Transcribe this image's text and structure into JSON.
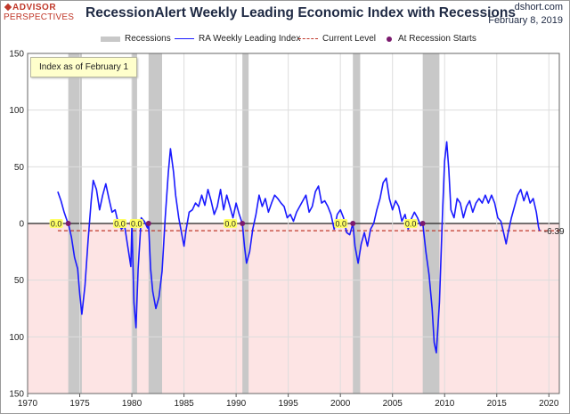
{
  "header": {
    "logo_top": "ADVISOR",
    "logo_bottom": "PERSPECTIVES",
    "title": "RecessionAlert Weekly Leading Economic Index with Recessions",
    "source": "dshort.com",
    "date": "February 8, 2019"
  },
  "note": "Index as of February 1",
  "colors": {
    "series": "#1a1aff",
    "recession": "#c8c8c8",
    "current": "#c0392b",
    "negative_band": "#fde4e4",
    "marker": "#7b1a6e",
    "zero_label_bg": "#ffff66"
  },
  "chart_data": {
    "type": "line",
    "title": "RecessionAlert Weekly Leading Economic Index with Recessions",
    "xlabel": "",
    "ylabel": "",
    "xlim": [
      1970,
      2021
    ],
    "ylim": [
      -150,
      150
    ],
    "x_ticks": [
      1970,
      1975,
      1980,
      1985,
      1990,
      1995,
      2000,
      2005,
      2010,
      2015,
      2020
    ],
    "y_ticks": [
      150,
      100,
      50,
      0,
      -50,
      -100,
      -150
    ],
    "y_tick_labels": [
      "150",
      "100",
      "50",
      "0",
      "50",
      "100",
      "150"
    ],
    "legend": [
      {
        "key": "recessions",
        "label": "Recessions"
      },
      {
        "key": "series",
        "label": "RA Weekly Leading Index"
      },
      {
        "key": "current",
        "label": "Current Level"
      },
      {
        "key": "starts",
        "label": "At Recession Starts"
      }
    ],
    "recessions": [
      [
        1973.9,
        1975.2
      ],
      [
        1980.0,
        1980.5
      ],
      [
        1981.6,
        1982.9
      ],
      [
        1990.6,
        1991.2
      ],
      [
        2001.2,
        2001.9
      ],
      [
        2007.9,
        2009.5
      ]
    ],
    "current_level": -6.39,
    "current_label": "-6.39",
    "recession_start_values": [
      {
        "x": 1973.9,
        "y": 0,
        "label": "0.0"
      },
      {
        "x": 1980.0,
        "y": 0,
        "label": "0.0"
      },
      {
        "x": 1981.6,
        "y": 0,
        "label": "0.0"
      },
      {
        "x": 1990.6,
        "y": 0,
        "label": "0.0"
      },
      {
        "x": 2001.2,
        "y": 0,
        "label": "0.0"
      },
      {
        "x": 2007.9,
        "y": 0,
        "label": "0.0"
      }
    ],
    "series": [
      {
        "name": "RA Weekly Leading Index",
        "points": [
          [
            1972.9,
            28
          ],
          [
            1973.2,
            20
          ],
          [
            1973.5,
            10
          ],
          [
            1973.8,
            2
          ],
          [
            1973.9,
            0
          ],
          [
            1974.2,
            -12
          ],
          [
            1974.5,
            -30
          ],
          [
            1974.8,
            -40
          ],
          [
            1975.0,
            -62
          ],
          [
            1975.2,
            -80
          ],
          [
            1975.5,
            -55
          ],
          [
            1975.8,
            -15
          ],
          [
            1976.1,
            20
          ],
          [
            1976.3,
            38
          ],
          [
            1976.6,
            30
          ],
          [
            1976.9,
            12
          ],
          [
            1977.2,
            25
          ],
          [
            1977.5,
            35
          ],
          [
            1977.8,
            22
          ],
          [
            1978.1,
            10
          ],
          [
            1978.4,
            12
          ],
          [
            1978.7,
            0
          ],
          [
            1979.0,
            -5
          ],
          [
            1979.3,
            -2
          ],
          [
            1979.6,
            -20
          ],
          [
            1979.9,
            -38
          ],
          [
            1980.0,
            0
          ],
          [
            1980.2,
            -70
          ],
          [
            1980.4,
            -92
          ],
          [
            1980.6,
            -40
          ],
          [
            1980.9,
            5
          ],
          [
            1981.2,
            2
          ],
          [
            1981.5,
            -4
          ],
          [
            1981.6,
            0
          ],
          [
            1981.8,
            -40
          ],
          [
            1982.0,
            -60
          ],
          [
            1982.3,
            -75
          ],
          [
            1982.6,
            -65
          ],
          [
            1982.9,
            -42
          ],
          [
            1983.2,
            5
          ],
          [
            1983.5,
            45
          ],
          [
            1983.7,
            66
          ],
          [
            1984.0,
            45
          ],
          [
            1984.2,
            25
          ],
          [
            1984.5,
            5
          ],
          [
            1984.8,
            -10
          ],
          [
            1985.0,
            -20
          ],
          [
            1985.2,
            -6
          ],
          [
            1985.5,
            10
          ],
          [
            1985.8,
            12
          ],
          [
            1986.1,
            18
          ],
          [
            1986.4,
            15
          ],
          [
            1986.7,
            25
          ],
          [
            1987.0,
            16
          ],
          [
            1987.3,
            30
          ],
          [
            1987.6,
            20
          ],
          [
            1987.9,
            8
          ],
          [
            1988.2,
            15
          ],
          [
            1988.5,
            30
          ],
          [
            1988.8,
            12
          ],
          [
            1989.1,
            25
          ],
          [
            1989.4,
            15
          ],
          [
            1989.7,
            5
          ],
          [
            1990.0,
            18
          ],
          [
            1990.3,
            8
          ],
          [
            1990.6,
            0
          ],
          [
            1990.8,
            -20
          ],
          [
            1991.0,
            -35
          ],
          [
            1991.3,
            -25
          ],
          [
            1991.6,
            -5
          ],
          [
            1991.9,
            8
          ],
          [
            1992.2,
            25
          ],
          [
            1992.5,
            15
          ],
          [
            1992.8,
            22
          ],
          [
            1993.1,
            10
          ],
          [
            1993.4,
            18
          ],
          [
            1993.7,
            25
          ],
          [
            1994.0,
            22
          ],
          [
            1994.3,
            18
          ],
          [
            1994.6,
            15
          ],
          [
            1994.9,
            5
          ],
          [
            1995.2,
            8
          ],
          [
            1995.5,
            2
          ],
          [
            1995.8,
            10
          ],
          [
            1996.1,
            15
          ],
          [
            1996.4,
            20
          ],
          [
            1996.7,
            25
          ],
          [
            1997.0,
            10
          ],
          [
            1997.3,
            15
          ],
          [
            1997.6,
            28
          ],
          [
            1997.9,
            33
          ],
          [
            1998.2,
            18
          ],
          [
            1998.5,
            20
          ],
          [
            1998.8,
            15
          ],
          [
            1999.1,
            8
          ],
          [
            1999.4,
            -5
          ],
          [
            1999.7,
            8
          ],
          [
            2000.0,
            12
          ],
          [
            2000.3,
            5
          ],
          [
            2000.6,
            -8
          ],
          [
            2000.9,
            -10
          ],
          [
            2001.2,
            0
          ],
          [
            2001.4,
            -20
          ],
          [
            2001.7,
            -35
          ],
          [
            2002.0,
            -18
          ],
          [
            2002.3,
            -8
          ],
          [
            2002.6,
            -20
          ],
          [
            2002.9,
            -5
          ],
          [
            2003.2,
            0
          ],
          [
            2003.5,
            12
          ],
          [
            2003.8,
            22
          ],
          [
            2004.1,
            36
          ],
          [
            2004.4,
            40
          ],
          [
            2004.7,
            22
          ],
          [
            2005.0,
            12
          ],
          [
            2005.3,
            20
          ],
          [
            2005.6,
            15
          ],
          [
            2005.9,
            2
          ],
          [
            2006.2,
            8
          ],
          [
            2006.5,
            -5
          ],
          [
            2006.8,
            4
          ],
          [
            2007.1,
            10
          ],
          [
            2007.4,
            5
          ],
          [
            2007.7,
            -2
          ],
          [
            2007.9,
            0
          ],
          [
            2008.2,
            -25
          ],
          [
            2008.5,
            -45
          ],
          [
            2008.8,
            -75
          ],
          [
            2009.0,
            -105
          ],
          [
            2009.2,
            -114
          ],
          [
            2009.5,
            -70
          ],
          [
            2009.8,
            10
          ],
          [
            2010.0,
            55
          ],
          [
            2010.2,
            72
          ],
          [
            2010.4,
            48
          ],
          [
            2010.6,
            12
          ],
          [
            2010.9,
            5
          ],
          [
            2011.2,
            22
          ],
          [
            2011.5,
            18
          ],
          [
            2011.8,
            5
          ],
          [
            2012.1,
            15
          ],
          [
            2012.4,
            20
          ],
          [
            2012.7,
            10
          ],
          [
            2013.0,
            18
          ],
          [
            2013.3,
            22
          ],
          [
            2013.6,
            18
          ],
          [
            2013.9,
            25
          ],
          [
            2014.2,
            18
          ],
          [
            2014.5,
            25
          ],
          [
            2014.8,
            18
          ],
          [
            2015.1,
            5
          ],
          [
            2015.4,
            2
          ],
          [
            2015.7,
            -10
          ],
          [
            2015.9,
            -18
          ],
          [
            2016.1,
            -8
          ],
          [
            2016.4,
            5
          ],
          [
            2016.7,
            15
          ],
          [
            2017.0,
            25
          ],
          [
            2017.3,
            30
          ],
          [
            2017.6,
            20
          ],
          [
            2017.9,
            28
          ],
          [
            2018.2,
            18
          ],
          [
            2018.5,
            22
          ],
          [
            2018.8,
            10
          ],
          [
            2019.0,
            -3
          ],
          [
            2019.1,
            -6.39
          ]
        ]
      }
    ]
  }
}
